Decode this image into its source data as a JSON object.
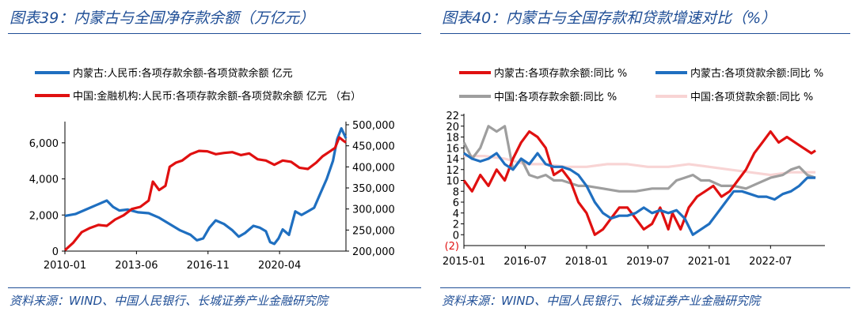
{
  "chart_data": [
    {
      "type": "line",
      "title": "图表39：内蒙古与全国净存款余额（万亿元）",
      "source": "资料来源：WIND、中国人民银行、长城证券产业金融研究院",
      "x_ticks": [
        "2010-01",
        "2013-06",
        "2016-11",
        "2020-04"
      ],
      "x_range": [
        2010.0,
        2023.42
      ],
      "y_left": {
        "ticks": [
          "0",
          "2,000",
          "4,000",
          "6,000"
        ],
        "range": [
          0,
          7000
        ]
      },
      "y_right": {
        "ticks": [
          "200,000",
          "250,000",
          "300,000",
          "350,000",
          "400,000",
          "450,000",
          "500,000"
        ],
        "range": [
          200000,
          500000
        ]
      },
      "series": [
        {
          "name": "内蒙古:人民币:各项存款余额-各项贷款余额 亿元",
          "color": "#1f6fc0",
          "axis": "left",
          "x": [
            2010.0,
            2010.5,
            2011.0,
            2011.5,
            2012.0,
            2012.3,
            2012.6,
            2013.0,
            2013.5,
            2014.0,
            2014.5,
            2015.0,
            2015.5,
            2016.0,
            2016.3,
            2016.6,
            2016.9,
            2017.2,
            2017.6,
            2018.0,
            2018.3,
            2018.6,
            2019.0,
            2019.3,
            2019.6,
            2019.8,
            2020.0,
            2020.2,
            2020.4,
            2020.7,
            2021.0,
            2021.3,
            2021.6,
            2021.9,
            2022.2,
            2022.5,
            2022.8,
            2023.0,
            2023.2,
            2023.42
          ],
          "values": [
            1950,
            2050,
            2300,
            2550,
            2800,
            2450,
            2250,
            2300,
            2150,
            2100,
            1850,
            1500,
            1150,
            900,
            600,
            700,
            1300,
            1700,
            1500,
            1150,
            800,
            1000,
            1400,
            1300,
            1100,
            500,
            400,
            700,
            1200,
            900,
            2200,
            2000,
            2200,
            2400,
            3200,
            4000,
            5000,
            6200,
            6800,
            6250
          ]
        },
        {
          "name": "中国:金融机构:人民币:各项存款余额-各项贷款余额 亿元 （右）",
          "color": "#e01010",
          "axis": "right",
          "x": [
            2010.0,
            2010.4,
            2010.8,
            2011.2,
            2011.6,
            2012.0,
            2012.4,
            2012.8,
            2013.2,
            2013.6,
            2014.0,
            2014.2,
            2014.5,
            2014.8,
            2015.0,
            2015.3,
            2015.6,
            2016.0,
            2016.4,
            2016.8,
            2017.2,
            2017.6,
            2018.0,
            2018.4,
            2018.8,
            2019.2,
            2019.6,
            2020.0,
            2020.4,
            2020.8,
            2021.2,
            2021.6,
            2022.0,
            2022.3,
            2022.6,
            2022.9,
            2023.1,
            2023.3,
            2023.42
          ],
          "values": [
            202000,
            220000,
            245000,
            255000,
            262000,
            260000,
            275000,
            285000,
            300000,
            305000,
            320000,
            365000,
            345000,
            355000,
            400000,
            410000,
            415000,
            430000,
            438000,
            437000,
            430000,
            433000,
            435000,
            428000,
            432000,
            418000,
            415000,
            405000,
            415000,
            412000,
            398000,
            395000,
            410000,
            425000,
            435000,
            445000,
            470000,
            462000,
            458000
          ]
        }
      ]
    },
    {
      "type": "line",
      "title": "图表40：内蒙古与全国存款和贷款增速对比（%）",
      "source": "资料来源：WIND、中国人民银行、长城证券产业金融研究院",
      "x_ticks": [
        "2015-01",
        "2016-07",
        "2018-01",
        "2019-07",
        "2021-01",
        "2022-07"
      ],
      "x_range": [
        2015.0,
        2023.83
      ],
      "y": {
        "ticks": [
          "0",
          "2",
          "4",
          "6",
          "8",
          "10",
          "12",
          "14",
          "16",
          "18",
          "20",
          "22"
        ],
        "range": [
          -2,
          22
        ],
        "neg_label": "(2)"
      },
      "series": [
        {
          "name": "内蒙古:各项存款余额:同比 %",
          "color": "#e01010",
          "x": [
            2015.0,
            2015.2,
            2015.4,
            2015.6,
            2015.8,
            2016.0,
            2016.2,
            2016.4,
            2016.6,
            2016.8,
            2017.0,
            2017.2,
            2017.4,
            2017.6,
            2017.8,
            2018.0,
            2018.2,
            2018.4,
            2018.6,
            2018.8,
            2019.0,
            2019.2,
            2019.4,
            2019.6,
            2019.8,
            2020.0,
            2020.1,
            2020.3,
            2020.5,
            2020.7,
            2020.9,
            2021.1,
            2021.3,
            2021.5,
            2021.7,
            2021.9,
            2022.1,
            2022.3,
            2022.5,
            2022.7,
            2022.9,
            2023.1,
            2023.3,
            2023.5,
            2023.6
          ],
          "values": [
            10,
            8,
            11,
            9,
            12,
            10,
            14,
            17,
            19,
            18,
            16,
            11,
            12,
            10,
            6,
            4,
            0,
            1,
            3,
            5,
            5,
            3,
            1,
            2,
            5,
            1,
            4,
            1,
            5,
            7,
            8,
            9,
            7,
            8,
            10,
            12,
            15,
            17,
            19,
            17,
            18,
            17,
            16,
            15,
            15.5
          ]
        },
        {
          "name": "内蒙古:各项贷款余额:同比 %",
          "color": "#1f6fc0",
          "x": [
            2015.0,
            2015.2,
            2015.4,
            2015.6,
            2015.8,
            2016.0,
            2016.2,
            2016.4,
            2016.6,
            2016.8,
            2017.0,
            2017.2,
            2017.4,
            2017.6,
            2017.8,
            2018.0,
            2018.2,
            2018.4,
            2018.6,
            2018.8,
            2019.0,
            2019.2,
            2019.4,
            2019.6,
            2019.8,
            2020.0,
            2020.2,
            2020.4,
            2020.6,
            2020.8,
            2021.0,
            2021.2,
            2021.4,
            2021.6,
            2021.8,
            2022.0,
            2022.2,
            2022.4,
            2022.6,
            2022.8,
            2023.0,
            2023.2,
            2023.4,
            2023.6
          ],
          "values": [
            15,
            14,
            13.5,
            14,
            15,
            13,
            12,
            14,
            13,
            15,
            13,
            12.5,
            12.5,
            12,
            11,
            9,
            6,
            4,
            3,
            3.5,
            3.5,
            4,
            5,
            4,
            4.5,
            4,
            4.5,
            3,
            0,
            1,
            2,
            4,
            6,
            8,
            8,
            7.5,
            7,
            7,
            6.5,
            7.5,
            8,
            9,
            10.5,
            10.5
          ]
        },
        {
          "name": "中国:各项存款余额:同比 %",
          "color": "#9e9e9e",
          "x": [
            2015.0,
            2015.2,
            2015.4,
            2015.6,
            2015.8,
            2016.0,
            2016.2,
            2016.4,
            2016.6,
            2016.8,
            2017.0,
            2017.2,
            2017.4,
            2017.6,
            2017.8,
            2018.0,
            2018.4,
            2018.8,
            2019.2,
            2019.6,
            2020.0,
            2020.2,
            2020.4,
            2020.6,
            2020.8,
            2021.0,
            2021.3,
            2021.6,
            2021.9,
            2022.2,
            2022.5,
            2022.8,
            2023.0,
            2023.2,
            2023.4,
            2023.6
          ],
          "values": [
            17,
            14,
            16,
            20,
            19,
            20,
            12,
            14,
            11,
            10.5,
            11,
            10,
            10,
            9.5,
            9,
            9,
            8.5,
            8,
            8,
            8.5,
            8.5,
            10,
            10.5,
            11,
            10,
            10,
            9,
            9,
            8.5,
            9.5,
            10.5,
            11,
            12,
            12.5,
            11,
            10.5
          ]
        },
        {
          "name": "中国:各项贷款余额:同比 %",
          "color": "#f8d4d4",
          "x": [
            2015.0,
            2015.5,
            2016.0,
            2016.5,
            2017.0,
            2017.5,
            2018.0,
            2018.5,
            2019.0,
            2019.5,
            2020.0,
            2020.5,
            2021.0,
            2021.5,
            2022.0,
            2022.5,
            2023.0,
            2023.3,
            2023.6
          ],
          "values": [
            14.5,
            14.5,
            14,
            13,
            13,
            12.5,
            12.5,
            13,
            13,
            12.5,
            12.5,
            13,
            12.5,
            12,
            11.5,
            11,
            11.5,
            11.5,
            11.5
          ]
        }
      ]
    }
  ]
}
